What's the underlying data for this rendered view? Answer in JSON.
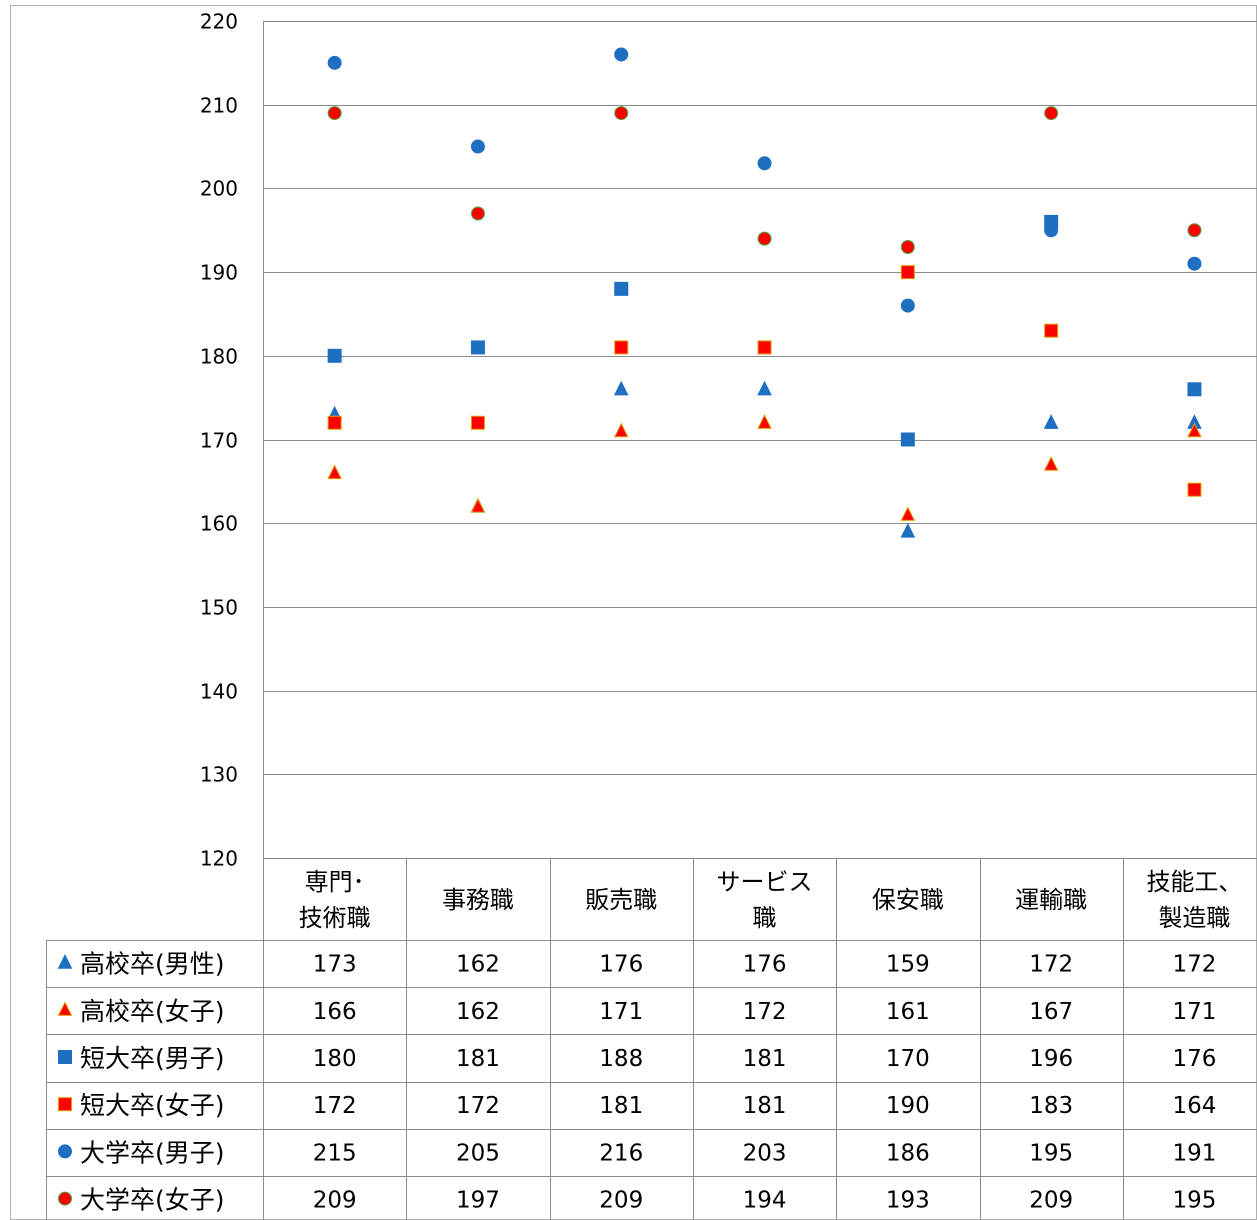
{
  "chart_data": {
    "type": "scatter",
    "title": "",
    "xlabel": "",
    "ylabel": "",
    "ylim": [
      120,
      220
    ],
    "yticks": [
      120,
      130,
      140,
      150,
      160,
      170,
      180,
      190,
      200,
      210,
      220
    ],
    "grid": true,
    "legend": "data-table-left",
    "categories": [
      [
        "専門･",
        "技術職"
      ],
      [
        "事務職"
      ],
      [
        "販売職"
      ],
      [
        "サービス",
        "職"
      ],
      [
        "保安職"
      ],
      [
        "運輸職"
      ],
      [
        "技能工、",
        "製造職"
      ]
    ],
    "series": [
      {
        "name": "高校卒(男性)",
        "marker": "triangle",
        "color": "#1f6fc1",
        "stroke": "#1f6fc1",
        "values": [
          173,
          162,
          176,
          176,
          159,
          172,
          172
        ]
      },
      {
        "name": "高校卒(女子)",
        "marker": "triangle",
        "color": "#ff0000",
        "stroke": "#e0a000",
        "values": [
          166,
          162,
          171,
          172,
          161,
          167,
          171
        ]
      },
      {
        "name": "短大卒(男子)",
        "marker": "square",
        "color": "#1f6fc1",
        "stroke": "#1f6fc1",
        "values": [
          180,
          181,
          188,
          181,
          170,
          196,
          176
        ]
      },
      {
        "name": "短大卒(女子)",
        "marker": "square",
        "color": "#ff0000",
        "stroke": "#e0a000",
        "values": [
          172,
          172,
          181,
          181,
          190,
          183,
          164
        ]
      },
      {
        "name": "大学卒(男子)",
        "marker": "circle",
        "color": "#1f6fc1",
        "stroke": "#1f6fc1",
        "values": [
          215,
          205,
          216,
          203,
          186,
          195,
          191
        ]
      },
      {
        "name": "大学卒(女子)",
        "marker": "circle",
        "color": "#ff0000",
        "stroke": "#4aa84a",
        "values": [
          209,
          197,
          209,
          194,
          193,
          209,
          195
        ]
      }
    ]
  }
}
